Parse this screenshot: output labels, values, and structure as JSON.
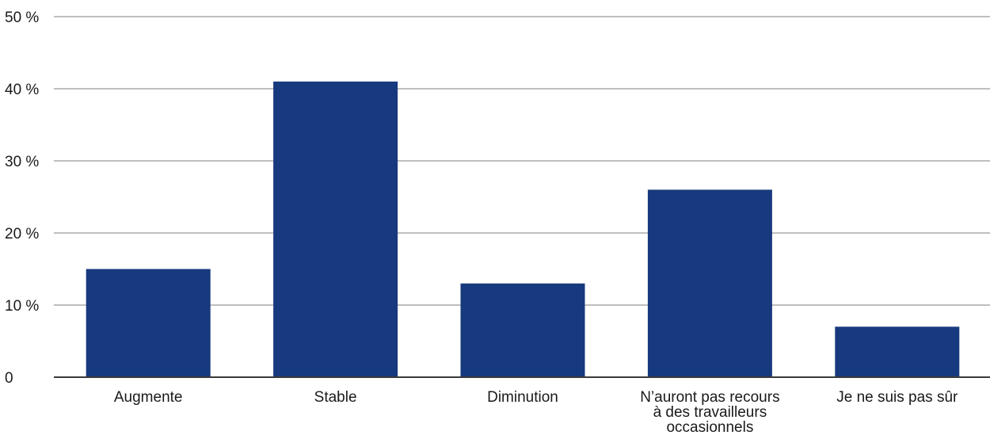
{
  "chart_data": {
    "type": "bar",
    "categories": [
      "Augmente",
      "Stable",
      "Diminution",
      [
        "N’auront pas recours",
        "à des travailleurs",
        "occasionnels"
      ],
      "Je ne suis pas sûr"
    ],
    "values": [
      15,
      41,
      13,
      26,
      7
    ],
    "ylim": [
      0,
      50
    ],
    "yticks": [
      0,
      10,
      20,
      30,
      40,
      50
    ],
    "ytick_labels": [
      "0",
      "10 %",
      "20 %",
      "30 %",
      "40 %",
      "50 %"
    ],
    "grid": true,
    "colors": {
      "bar": "#17397d"
    }
  }
}
